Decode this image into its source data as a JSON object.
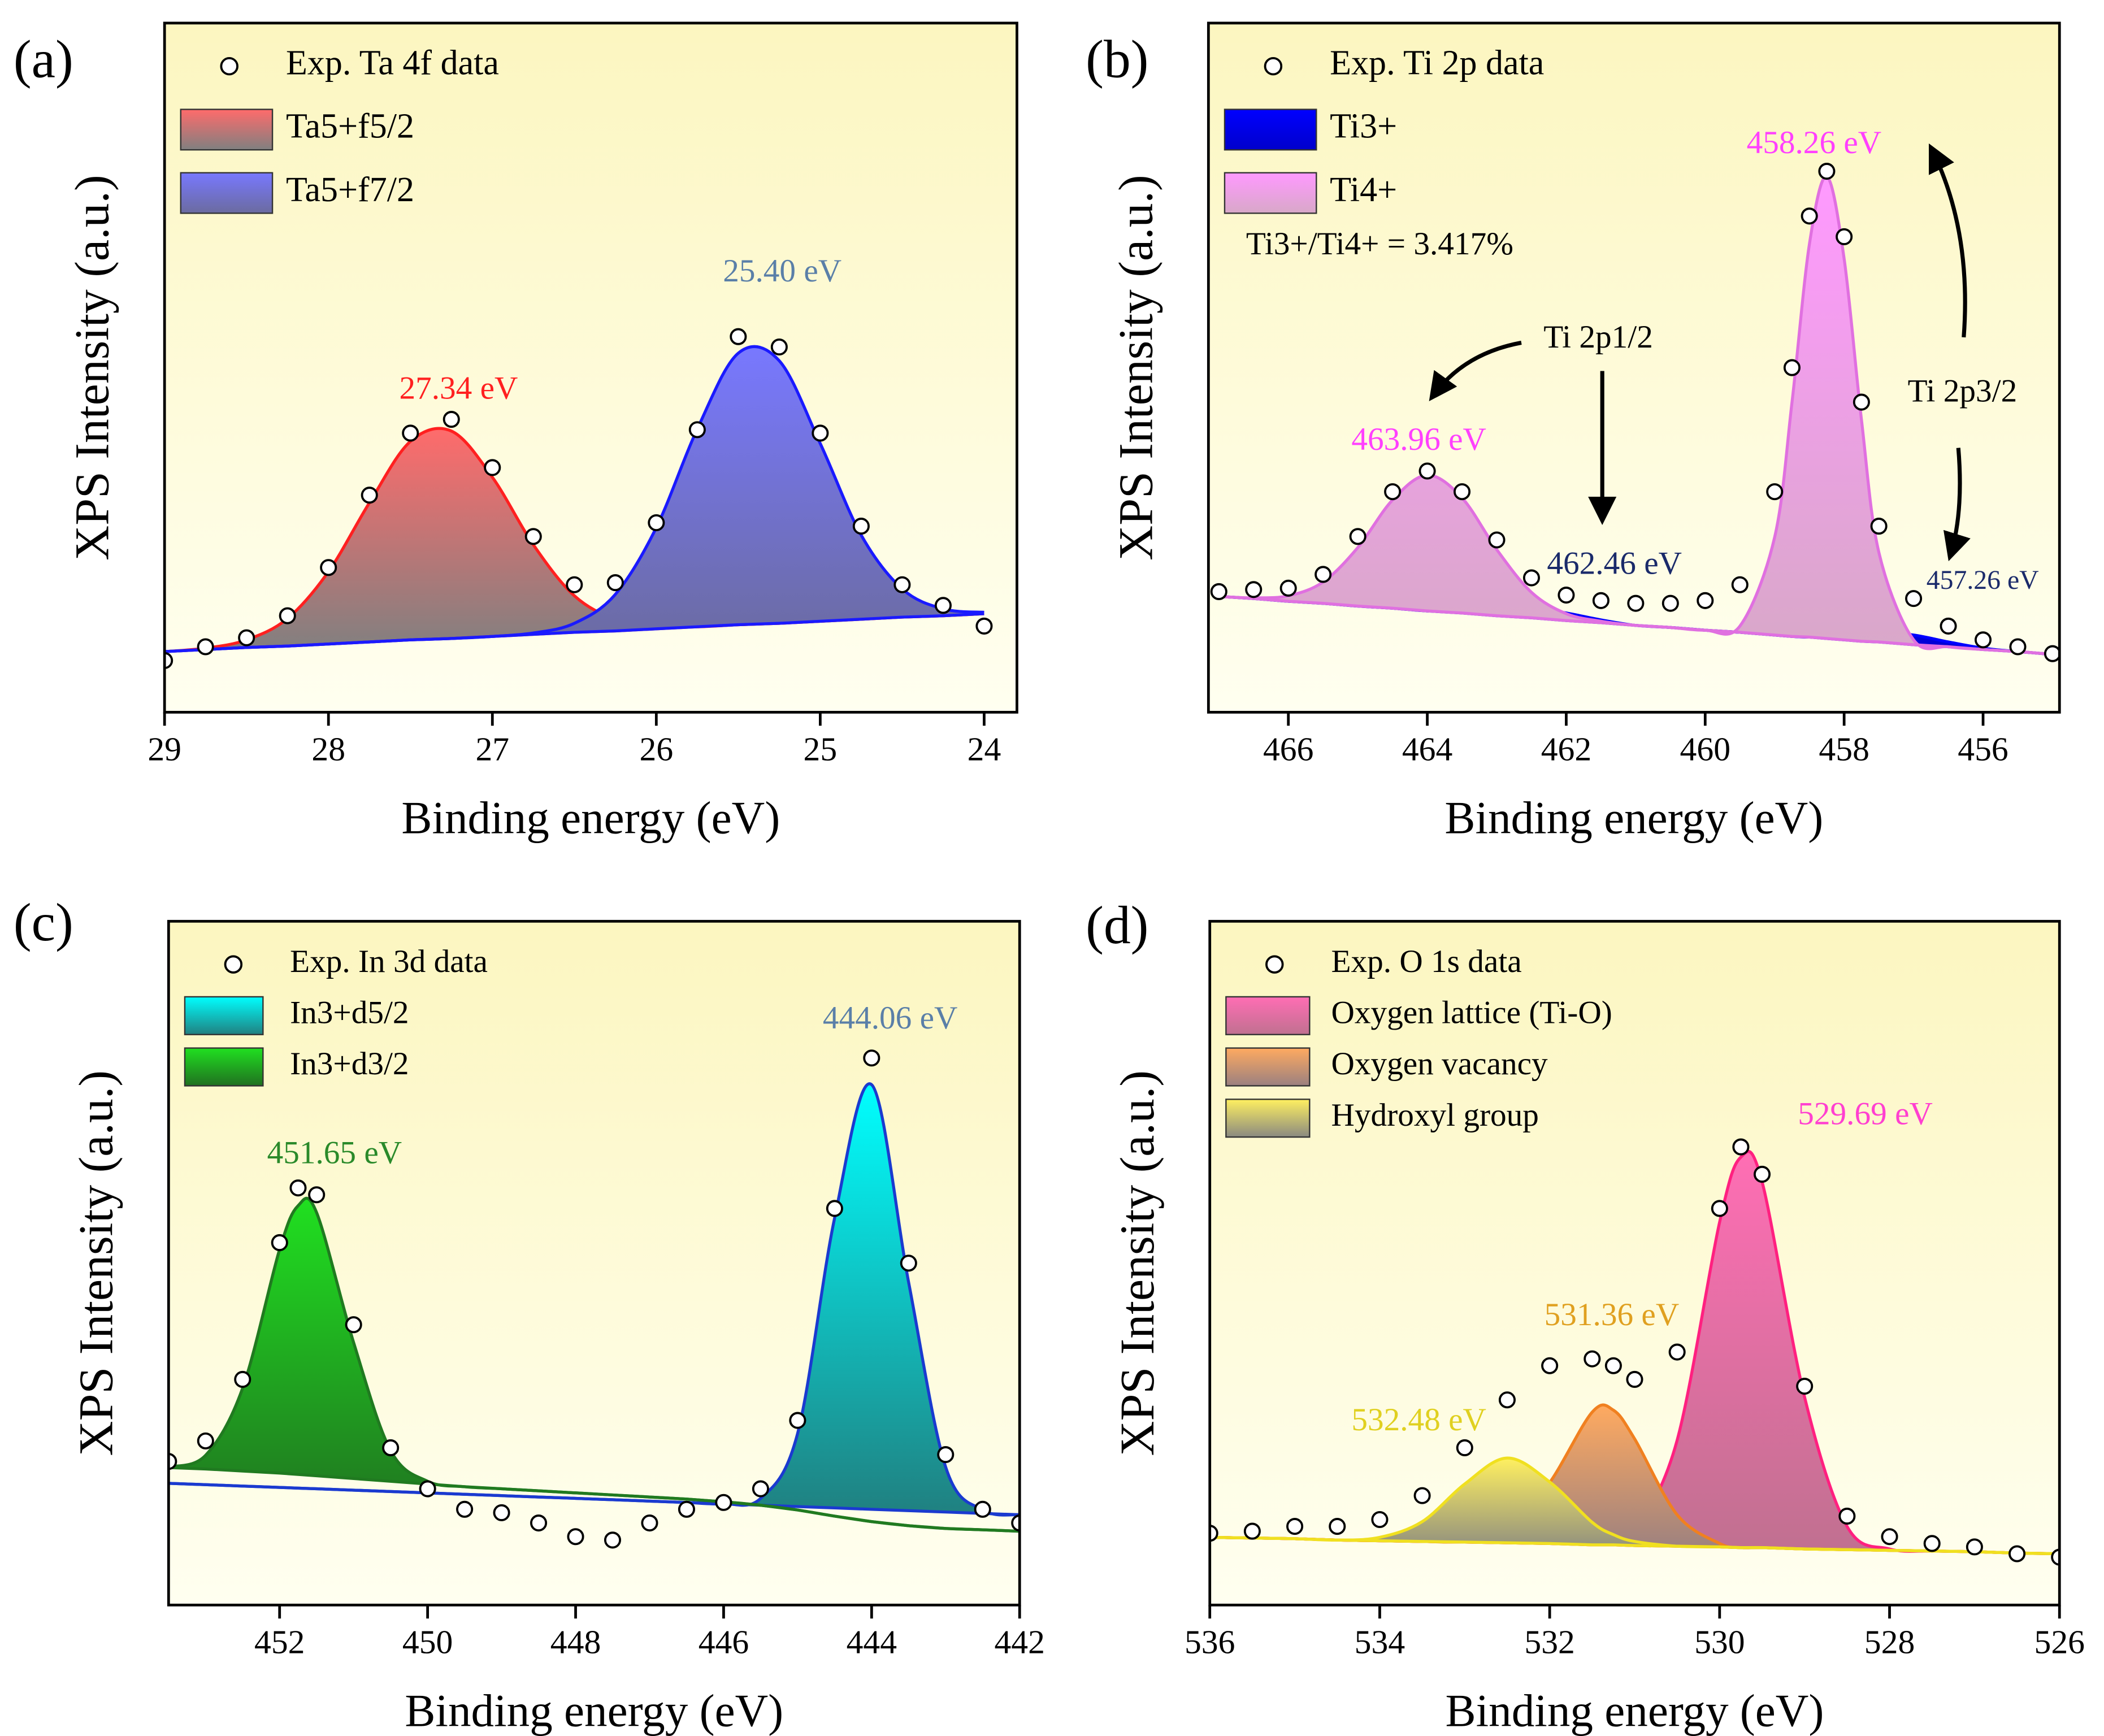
{
  "chart_data": [
    {
      "type": "area",
      "panel_label": "(a)",
      "xlabel": "Binding energy (eV)",
      "ylabel": "XPS Intensity (a.u.)",
      "xlim": [
        29,
        23.8
      ],
      "xticks": [
        29,
        28,
        27,
        26,
        25,
        24
      ],
      "ylim": [
        0,
        100
      ],
      "x": [
        29,
        28.75,
        28.5,
        28.25,
        28,
        27.75,
        27.5,
        27.25,
        27,
        26.75,
        26.5,
        26.25,
        26,
        25.75,
        25.5,
        25.25,
        25,
        24.75,
        24.5,
        24.25,
        24
      ],
      "baseline": [
        8.8,
        9.1,
        9.4,
        9.6,
        9.9,
        10.2,
        10.5,
        10.7,
        11.0,
        11.3,
        11.6,
        11.8,
        12.1,
        12.4,
        12.7,
        12.9,
        13.2,
        13.5,
        13.8,
        14.0,
        14.3
      ],
      "series": [
        {
          "name": "Exp. Ta 4f data",
          "type": "scatter",
          "values": [
            7.5,
            9.5,
            10.8,
            14.0,
            21.0,
            31.5,
            40.5,
            42.5,
            35.5,
            25.5,
            18.5,
            18.8,
            27.5,
            41.0,
            54.5,
            53.0,
            40.5,
            27.0,
            18.5,
            15.5,
            12.5
          ]
        },
        {
          "name": "Ta5+f5/2",
          "color": "#ff2020",
          "fill": [
            "#ff6b6b",
            "#808080"
          ],
          "values": [
            8.8,
            9.3,
            10.5,
            13.6,
            20.4,
            30.4,
            39.3,
            40.8,
            34.1,
            24.3,
            16.9,
            13.5,
            12.5,
            12.4,
            12.7,
            12.9,
            13.2,
            13.5,
            13.8,
            14.0,
            14.3
          ]
        },
        {
          "name": "Ta5+f7/2",
          "color": "#1a1aff",
          "fill": [
            "#7878ff",
            "#6b6b9f"
          ],
          "values": [
            8.8,
            9.1,
            9.4,
            9.6,
            9.9,
            10.2,
            10.5,
            10.7,
            11.0,
            11.5,
            12.9,
            17.1,
            26.8,
            41.1,
            52.1,
            51.0,
            39.0,
            25.7,
            17.9,
            15.0,
            14.5
          ]
        }
      ],
      "annotations": [
        {
          "text": "27.34 eV",
          "color": "#ff2020"
        },
        {
          "text": "25.40 eV",
          "color": "#5a7fa8"
        }
      ]
    },
    {
      "type": "area",
      "panel_label": "(b)",
      "xlabel": "Binding energy (eV)",
      "ylabel": "XPS Intensity (a.u.)",
      "xlim": [
        467.15,
        454.9
      ],
      "xticks": [
        466,
        464,
        462,
        460,
        458,
        456
      ],
      "ylim": [
        0,
        100
      ],
      "x": [
        467,
        466.5,
        466,
        465.5,
        465,
        464.5,
        464,
        463.5,
        463,
        462.5,
        462,
        461.5,
        461,
        460.5,
        460,
        459.5,
        459,
        458.75,
        458.5,
        458.25,
        458,
        457.75,
        457.5,
        457,
        456.5,
        456,
        455.5,
        455
      ],
      "baseline": [
        16.8,
        16.5,
        16.1,
        15.8,
        15.4,
        15.1,
        14.7,
        14.4,
        14.0,
        13.7,
        13.3,
        13.0,
        12.6,
        12.3,
        11.9,
        11.6,
        11.2,
        11.0,
        10.9,
        10.7,
        10.5,
        10.3,
        10.2,
        9.8,
        9.5,
        9.1,
        8.8,
        8.4
      ],
      "series": [
        {
          "name": "Exp. Ti 2p data",
          "type": "scatter",
          "values": [
            17.5,
            17.8,
            18.0,
            20.0,
            25.5,
            32.0,
            35.0,
            32.0,
            25.0,
            19.5,
            17.0,
            16.2,
            15.8,
            15.8,
            16.2,
            18.5,
            32.0,
            50.0,
            72.0,
            78.5,
            69.0,
            45.0,
            27.0,
            16.5,
            12.5,
            10.5,
            9.5,
            8.5
          ]
        },
        {
          "name": "Ti3+",
          "color": "#0000ff",
          "fill": [
            "#0000ff",
            "#0000cc"
          ],
          "values": [
            16.8,
            16.5,
            16.1,
            15.8,
            15.4,
            15.1,
            14.7,
            14.7,
            15.0,
            15.2,
            14.4,
            13.4,
            12.6,
            12.3,
            11.9,
            11.6,
            11.2,
            11.0,
            10.9,
            11.0,
            11.2,
            11.4,
            11.6,
            11.2,
            10.2,
            9.3,
            8.8,
            8.4
          ]
        },
        {
          "name": "Ti4+",
          "color": "#e070e0",
          "fill": [
            "#ff99ff",
            "#d8a8c8"
          ],
          "values": [
            16.8,
            16.6,
            16.9,
            18.9,
            23.9,
            30.8,
            34.4,
            31.1,
            23.6,
            17.4,
            14.3,
            13.2,
            12.6,
            12.3,
            11.9,
            12.5,
            25.4,
            45.0,
            67.9,
            77.7,
            65.8,
            42.4,
            23.2,
            10.5,
            9.5,
            9.1,
            8.8,
            8.4
          ]
        }
      ],
      "annotations": [
        {
          "text": "458.26 eV",
          "color": "#ff40ff"
        },
        {
          "text": "463.96 eV",
          "color": "#ff40ff"
        },
        {
          "text": "462.46 eV",
          "color": "#1a2a6a"
        },
        {
          "text": "457.26 eV",
          "color": "#1a2a6a"
        },
        {
          "text": "Ti 2p1/2",
          "color": "#000000"
        },
        {
          "text": "Ti 2p3/2",
          "color": "#000000"
        },
        {
          "text": "Ti3+/Ti4+ = 3.417%",
          "color": "#000000"
        }
      ]
    },
    {
      "type": "area",
      "panel_label": "(c)",
      "xlabel": "Binding energy (eV)",
      "ylabel": "XPS Intensity (a.u.)",
      "xlim": [
        453.5,
        442
      ],
      "xticks": [
        452,
        450,
        448,
        446,
        444,
        442
      ],
      "ylim": [
        0,
        100
      ],
      "x": [
        453.5,
        453,
        452.5,
        452,
        451.75,
        451.5,
        451,
        450.5,
        450,
        449.5,
        449,
        448.5,
        448,
        447.5,
        447,
        446.5,
        446,
        445.5,
        445,
        444.5,
        444,
        443.5,
        443,
        442.5,
        442
      ],
      "series": [
        {
          "name": "Exp. In 3d data",
          "type": "scatter",
          "values": [
            21,
            24,
            33,
            53,
            61,
            60,
            41,
            23,
            17,
            14,
            13.5,
            12,
            10,
            9.5,
            12,
            14,
            15,
            17,
            27,
            58,
            80,
            50,
            22,
            14,
            12
          ]
        },
        {
          "name": "In3+d5/2",
          "color": "#1a3ad0",
          "fill": [
            "#00ffff",
            "#208080"
          ],
          "values": [
            17.8,
            17.6,
            17.4,
            17.2,
            17.1,
            17.0,
            16.8,
            16.6,
            16.4,
            16.2,
            16.0,
            15.8,
            15.6,
            15.4,
            15.2,
            15.0,
            14.8,
            15.6,
            25.1,
            56.6,
            76.1,
            47.2,
            20.2,
            13.9,
            13.2
          ],
          "baseline": [
            17.8,
            17.6,
            17.4,
            17.2,
            17.1,
            17.0,
            16.8,
            16.6,
            16.4,
            16.2,
            16.0,
            15.8,
            15.6,
            15.4,
            15.2,
            15.0,
            14.8,
            14.6,
            14.4,
            14.2,
            14.0,
            13.8,
            13.6,
            13.4,
            13.2
          ]
        },
        {
          "name": "In3+d3/2",
          "color": "#207a20",
          "fill": [
            "#20e020",
            "#207020"
          ],
          "values": [
            20.2,
            21.9,
            31.7,
            52.0,
            58.4,
            57.4,
            38.4,
            22.6,
            18.1,
            17.3,
            17.0,
            16.7,
            16.4,
            16.1,
            15.8,
            15.5,
            15.1,
            14.6,
            13.9,
            13.0,
            12.2,
            11.6,
            11.2,
            11.0,
            10.8
          ],
          "baseline": [
            20.1,
            19.9,
            19.6,
            19.3,
            19.1,
            18.9,
            18.5,
            18.1,
            17.7,
            17.3,
            17.0,
            16.7,
            16.4,
            16.1,
            15.8,
            15.5,
            15.1,
            14.6,
            13.9,
            13.0,
            12.2,
            11.6,
            11.2,
            11.0,
            10.8
          ]
        }
      ],
      "annotations": [
        {
          "text": "444.06 eV",
          "color": "#5a7fa8"
        },
        {
          "text": "451.65 eV",
          "color": "#2a8a2a"
        }
      ]
    },
    {
      "type": "area",
      "panel_label": "(d)",
      "xlabel": "Binding energy (eV)",
      "ylabel": "XPS Intensity (a.u.)",
      "xlim": [
        536,
        526
      ],
      "xticks": [
        536,
        534,
        532,
        530,
        528,
        526
      ],
      "ylim": [
        0,
        100
      ],
      "x": [
        536,
        535.5,
        535,
        534.5,
        534,
        533.5,
        533,
        532.5,
        532,
        531.5,
        531.25,
        531,
        530.5,
        530,
        529.75,
        529.5,
        529,
        528.5,
        528,
        527.5,
        527,
        526.5,
        526
      ],
      "baseline": [
        9.9,
        9.8,
        9.7,
        9.5,
        9.4,
        9.3,
        9.2,
        9.1,
        9.0,
        8.8,
        8.8,
        8.7,
        8.6,
        8.5,
        8.4,
        8.4,
        8.2,
        8.1,
        8.0,
        7.9,
        7.8,
        7.6,
        7.5
      ],
      "series": [
        {
          "name": "Exp. O 1s data",
          "type": "scatter",
          "values": [
            10.5,
            10.8,
            11.5,
            11.5,
            12.5,
            16,
            23,
            30,
            35,
            36,
            35,
            33,
            37,
            58,
            67,
            63,
            32,
            13,
            10,
            9,
            8.5,
            7.5,
            7
          ]
        },
        {
          "name": "Oxygen lattice (Ti-O)",
          "color": "#ff2080",
          "fill": [
            "#ff6eb4",
            "#c07090"
          ],
          "values": [
            9.9,
            9.8,
            9.7,
            9.5,
            9.4,
            9.3,
            9.2,
            9.1,
            9.0,
            8.9,
            9.2,
            10.6,
            24.1,
            56.0,
            65.5,
            61.9,
            30.4,
            11.5,
            8.2,
            7.9,
            7.8,
            7.6,
            7.5
          ]
        },
        {
          "name": "Oxygen vacancy",
          "color": "#f08020",
          "fill": [
            "#ffaa60",
            "#9a8080"
          ],
          "values": [
            9.9,
            9.8,
            9.7,
            9.5,
            9.4,
            9.3,
            9.3,
            10.6,
            17.9,
            28.2,
            28.5,
            24.3,
            13.2,
            9.0,
            8.4,
            8.4,
            8.2,
            8.1,
            8.0,
            7.9,
            7.8,
            7.6,
            7.5
          ]
        },
        {
          "name": "Hydroxyl group",
          "color": "#f0e020",
          "fill": [
            "#fff060",
            "#8a8a80"
          ],
          "values": [
            9.9,
            9.8,
            9.7,
            9.5,
            9.9,
            12.2,
            17.7,
            21.5,
            18.0,
            12.1,
            10.3,
            9.3,
            8.6,
            8.5,
            8.4,
            8.4,
            8.2,
            8.1,
            8.0,
            7.9,
            7.8,
            7.6,
            7.5
          ]
        }
      ],
      "annotations": [
        {
          "text": "529.69 eV",
          "color": "#ff40d0"
        },
        {
          "text": "531.36 eV",
          "color": "#e0a020"
        },
        {
          "text": "532.48 eV",
          "color": "#e0d020"
        }
      ]
    }
  ]
}
